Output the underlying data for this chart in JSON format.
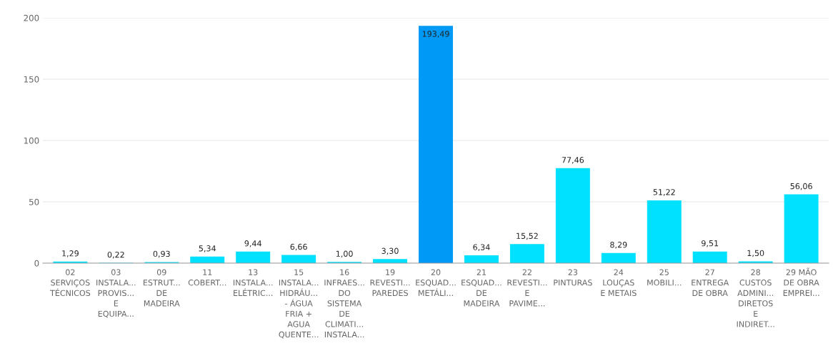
{
  "chart_data": {
    "type": "bar",
    "categories": [
      "02\nSERVIÇOS\nTÉCNICOS",
      "03\nINSTALA...\nPROVIS...\nE\nEQUIPA...",
      "09\nESTRUT...\nDE\nMADEIRA",
      "11\nCOBERT...",
      "13\nINSTALA...\nELÉTRIC...",
      "15\nINSTALA...\nHIDRÁU...\n- ÁGUA\nFRIA +\nAGUA\nQUENTE...",
      "16\nINFRAES...\nDO\nSISTEMA\nDE\nCLIMATI...\nINSTALA...",
      "19\nREVESTI...\nPAREDES",
      "20\nESQUAD...\nMETÁLI...",
      "21\nESQUAD...\nDE\nMADEIRA",
      "22\nREVESTI...\nE\nPAVIME...",
      "23\nPINTURAS",
      "24\nLOUÇAS\nE METAIS",
      "25\nMOBILI...",
      "27\nENTREGA\nDE OBRA",
      "28\nCUSTOS\nADMINI...\nDIRETOS\nE\nINDIRET...",
      "29 MÃO\nDE OBRA\nEMPREI..."
    ],
    "values": [
      1.29,
      0.22,
      0.93,
      5.34,
      9.44,
      6.66,
      1.0,
      3.3,
      193.49,
      6.34,
      15.52,
      77.46,
      8.29,
      51.22,
      9.51,
      1.5,
      56.06
    ],
    "value_labels": [
      "1,29",
      "0,22",
      "0,93",
      "5,34",
      "9,44",
      "6,66",
      "1,00",
      "3,30",
      "193,49",
      "6,34",
      "15,52",
      "77,46",
      "8,29",
      "51,22",
      "9,51",
      "1,50",
      "56,06"
    ],
    "colors": [
      "#00e1ff",
      "#00e1ff",
      "#00e1ff",
      "#00e1ff",
      "#00e1ff",
      "#00e1ff",
      "#00e1ff",
      "#00e1ff",
      "#0099f5",
      "#00e1ff",
      "#00e1ff",
      "#00e1ff",
      "#00e1ff",
      "#00e1ff",
      "#00e1ff",
      "#00e1ff",
      "#00e1ff"
    ],
    "ylim": [
      0,
      200
    ],
    "yticks": [
      0,
      50,
      100,
      150,
      200
    ],
    "grid": "y",
    "legend": false
  }
}
